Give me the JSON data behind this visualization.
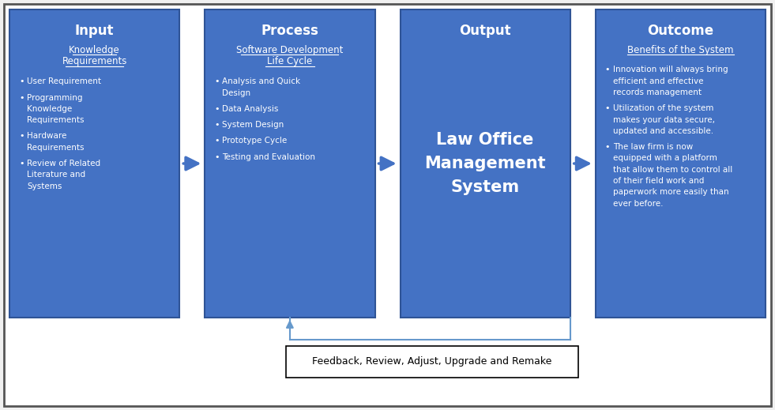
{
  "bg_color": "#f0f0f0",
  "outer_border_color": "#555555",
  "box_color": "#4472C4",
  "box_edge_color": "#2F5496",
  "text_color": "#ffffff",
  "arrow_color": "#4472C4",
  "feedback_line_color": "#6699CC",
  "feedback_box_color": "#ffffff",
  "feedback_text_color": "#000000",
  "feedback_edge_color": "#000000",
  "boxes": [
    {
      "title": "Input",
      "subtitle": "Knowledge\nRequirements",
      "subtitle_underline": true,
      "bullets": [
        "User Requirement",
        "Programming\nKnowledge\nRequirements",
        "Hardware\nRequirements",
        "Review of Related\nLiterature and\nSystems"
      ],
      "center_text": null
    },
    {
      "title": "Process",
      "subtitle": "Software Development\nLife Cycle",
      "subtitle_underline": true,
      "bullets": [
        "Analysis and Quick\nDesign",
        "Data Analysis",
        "System Design",
        "Prototype Cycle",
        "Testing and Evaluation"
      ],
      "center_text": null
    },
    {
      "title": "Output",
      "subtitle": null,
      "subtitle_underline": false,
      "bullets": [],
      "center_text": "Law Office\nManagement\nSystem"
    },
    {
      "title": "Outcome",
      "subtitle": "Benefits of the System",
      "subtitle_underline": true,
      "bullets": [
        "Innovation will always bring\nefficient and effective\nrecords management",
        "Utilization of the system\nmakes your data secure,\nupdated and accessible.",
        "The law firm is now\nequipped with a platform\nthat allow them to control all\nof their field work and\npaperwork more easily than\never before."
      ],
      "center_text": null
    }
  ],
  "feedback_text": "Feedback, Review, Adjust, Upgrade and Remake",
  "figure_width": 9.81,
  "figure_height": 5.19,
  "dpi": 100
}
